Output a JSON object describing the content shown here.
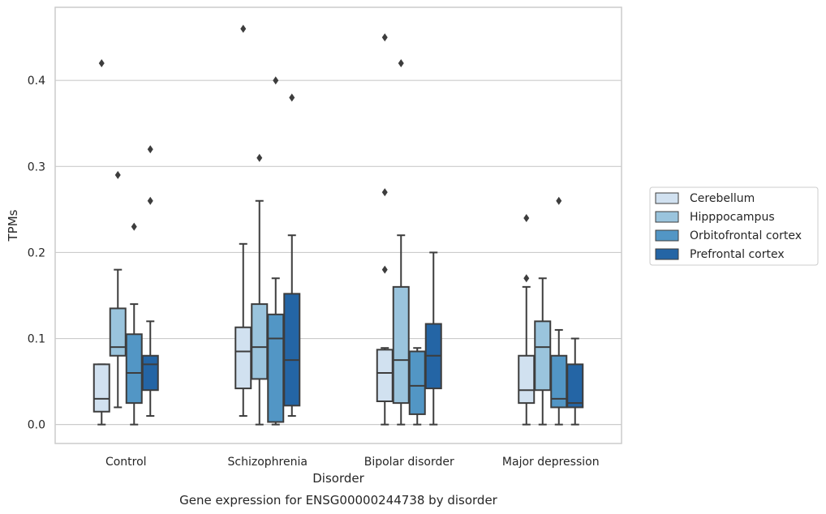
{
  "chart_data": {
    "type": "box",
    "xlabel": "Disorder",
    "ylabel": "TPMs",
    "caption": "Gene expression for ENSG00000244738 by disorder",
    "ylim": [
      -0.022,
      0.485
    ],
    "yticks": [
      0.0,
      0.1,
      0.2,
      0.3,
      0.4
    ],
    "ytick_labels": [
      "0.0",
      "0.1",
      "0.2",
      "0.3",
      "0.4"
    ],
    "grid": "horizontal",
    "legend_position": "right",
    "categories": [
      "Control",
      "Schizophrenia",
      "Bipolar disorder",
      "Major depression"
    ],
    "series": [
      {
        "name": "Cerebellum",
        "color": "#d1e1f0",
        "boxes": [
          {
            "whislo": 0.0,
            "q1": 0.015,
            "med": 0.03,
            "q3": 0.07,
            "whishi": 0.07,
            "fliers": [
              0.42
            ]
          },
          {
            "whislo": 0.01,
            "q1": 0.042,
            "med": 0.085,
            "q3": 0.113,
            "whishi": 0.21,
            "fliers": [
              0.46
            ]
          },
          {
            "whislo": 0.0,
            "q1": 0.027,
            "med": 0.06,
            "q3": 0.087,
            "whishi": 0.089,
            "fliers": [
              0.18,
              0.27,
              0.45
            ]
          },
          {
            "whislo": 0.0,
            "q1": 0.025,
            "med": 0.04,
            "q3": 0.08,
            "whishi": 0.16,
            "fliers": [
              0.17,
              0.24
            ]
          }
        ]
      },
      {
        "name": "Hipppocampus",
        "color": "#9ac4dd",
        "boxes": [
          {
            "whislo": 0.02,
            "q1": 0.08,
            "med": 0.09,
            "q3": 0.135,
            "whishi": 0.18,
            "fliers": [
              0.29
            ]
          },
          {
            "whislo": 0.0,
            "q1": 0.053,
            "med": 0.09,
            "q3": 0.14,
            "whishi": 0.26,
            "fliers": [
              0.31
            ]
          },
          {
            "whislo": 0.0,
            "q1": 0.025,
            "med": 0.075,
            "q3": 0.16,
            "whishi": 0.22,
            "fliers": [
              0.42
            ]
          },
          {
            "whislo": 0.0,
            "q1": 0.04,
            "med": 0.09,
            "q3": 0.12,
            "whishi": 0.17,
            "fliers": []
          }
        ]
      },
      {
        "name": "Orbitofrontal cortex",
        "color": "#5296c5",
        "boxes": [
          {
            "whislo": 0.0,
            "q1": 0.025,
            "med": 0.06,
            "q3": 0.105,
            "whishi": 0.14,
            "fliers": [
              0.23
            ]
          },
          {
            "whislo": 0.0,
            "q1": 0.003,
            "med": 0.1,
            "q3": 0.128,
            "whishi": 0.17,
            "fliers": [
              0.4
            ]
          },
          {
            "whislo": 0.0,
            "q1": 0.012,
            "med": 0.045,
            "q3": 0.085,
            "whishi": 0.089,
            "fliers": []
          },
          {
            "whislo": 0.0,
            "q1": 0.02,
            "med": 0.03,
            "q3": 0.08,
            "whishi": 0.11,
            "fliers": [
              0.26
            ]
          }
        ]
      },
      {
        "name": "Prefrontal cortex",
        "color": "#2465a5",
        "boxes": [
          {
            "whislo": 0.01,
            "q1": 0.04,
            "med": 0.07,
            "q3": 0.08,
            "whishi": 0.12,
            "fliers": [
              0.26,
              0.32
            ]
          },
          {
            "whislo": 0.01,
            "q1": 0.022,
            "med": 0.075,
            "q3": 0.152,
            "whishi": 0.22,
            "fliers": [
              0.38
            ]
          },
          {
            "whislo": 0.0,
            "q1": 0.042,
            "med": 0.08,
            "q3": 0.117,
            "whishi": 0.2,
            "fliers": []
          },
          {
            "whislo": 0.0,
            "q1": 0.02,
            "med": 0.025,
            "q3": 0.07,
            "whishi": 0.1,
            "fliers": []
          }
        ]
      }
    ]
  },
  "colors": {
    "grid": "#cccccc",
    "spine": "#cccccc",
    "line": "#3d3d3d"
  }
}
